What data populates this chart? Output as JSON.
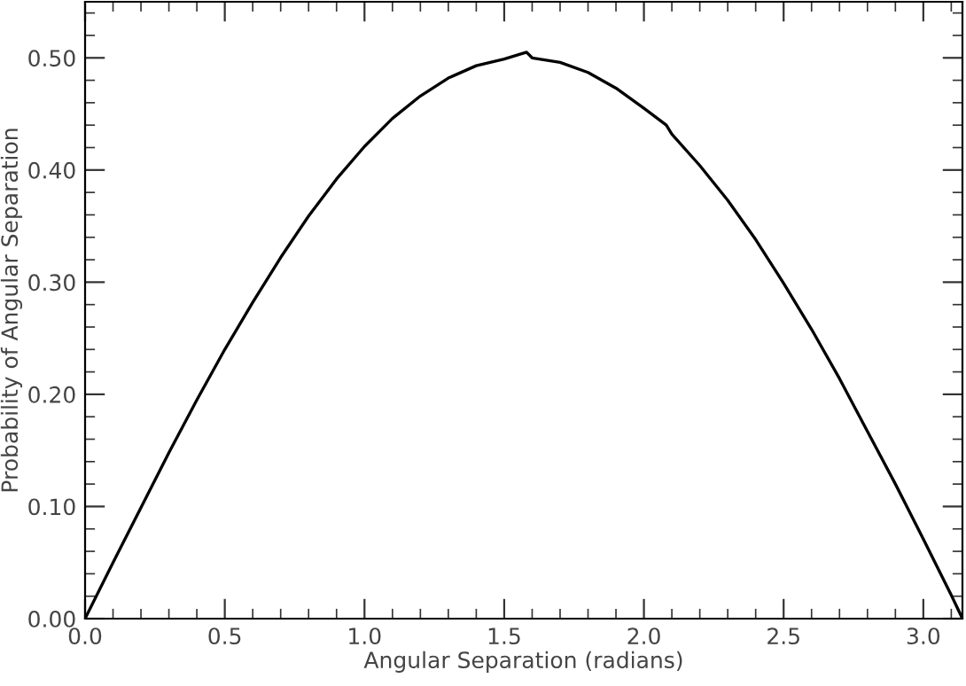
{
  "chart_data": {
    "type": "line",
    "xlabel": "Angular Separation (radians)",
    "ylabel": "Probability of Angular Separation",
    "x": [
      0,
      0.1,
      0.2,
      0.3,
      0.4,
      0.5,
      0.6,
      0.7,
      0.8,
      0.9,
      1.0,
      1.1,
      1.2,
      1.3,
      1.4,
      1.5,
      1.58,
      1.6,
      1.7,
      1.8,
      1.9,
      2.0,
      2.08,
      2.1,
      2.2,
      2.3,
      2.4,
      2.5,
      2.6,
      2.7,
      2.8,
      2.9,
      3.0,
      3.1,
      3.14
    ],
    "series": [
      {
        "color": "#000000",
        "values": [
          0,
          0.05,
          0.099,
          0.148,
          0.195,
          0.24,
          0.282,
          0.322,
          0.359,
          0.392,
          0.421,
          0.446,
          0.466,
          0.482,
          0.493,
          0.499,
          0.505,
          0.5,
          0.496,
          0.487,
          0.473,
          0.455,
          0.44,
          0.432,
          0.404,
          0.373,
          0.338,
          0.299,
          0.258,
          0.214,
          0.167,
          0.12,
          0.071,
          0.021,
          0
        ]
      }
    ],
    "xlim": [
      0,
      3.14
    ],
    "ylim": [
      0,
      0.55
    ],
    "xticks": [
      {
        "value": 0,
        "label": "0.0"
      },
      0.5,
      {
        "value": 1,
        "label": "1.0"
      },
      1.5,
      {
        "value": 2,
        "label": "2.0"
      },
      2.5,
      {
        "value": 3,
        "label": "3.0"
      }
    ],
    "yticks": [
      {
        "value": 0,
        "label": "0.00"
      },
      {
        "value": 0.1,
        "label": "0.10"
      },
      {
        "value": 0.2,
        "label": "0.20"
      },
      {
        "value": 0.3,
        "label": "0.30"
      },
      {
        "value": 0.4,
        "label": "0.40"
      },
      {
        "value": 0.5,
        "label": "0.50"
      }
    ],
    "marker": "none",
    "line_style": "solid"
  }
}
